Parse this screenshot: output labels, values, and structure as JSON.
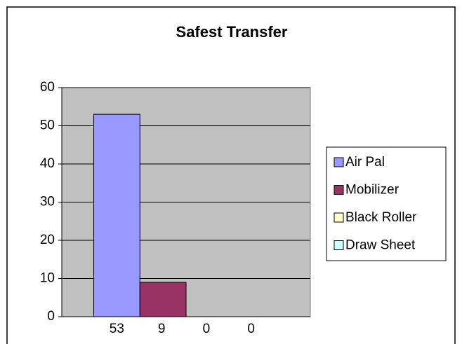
{
  "chart_data": {
    "type": "bar",
    "title": "Safest Transfer",
    "series": [
      {
        "name": "Air Pal",
        "color": "#9999ff",
        "values": [
          53
        ]
      },
      {
        "name": "Mobilizer",
        "color": "#993366",
        "values": [
          9
        ]
      },
      {
        "name": "Black Roller",
        "color": "#ffffcc",
        "values": [
          0
        ]
      },
      {
        "name": "Draw Sheet",
        "color": "#ccffff",
        "values": [
          0
        ]
      }
    ],
    "ylim": [
      0,
      60
    ],
    "yticks": [
      0,
      10,
      20,
      30,
      40,
      50,
      60
    ],
    "grid": true,
    "legend": "right"
  }
}
